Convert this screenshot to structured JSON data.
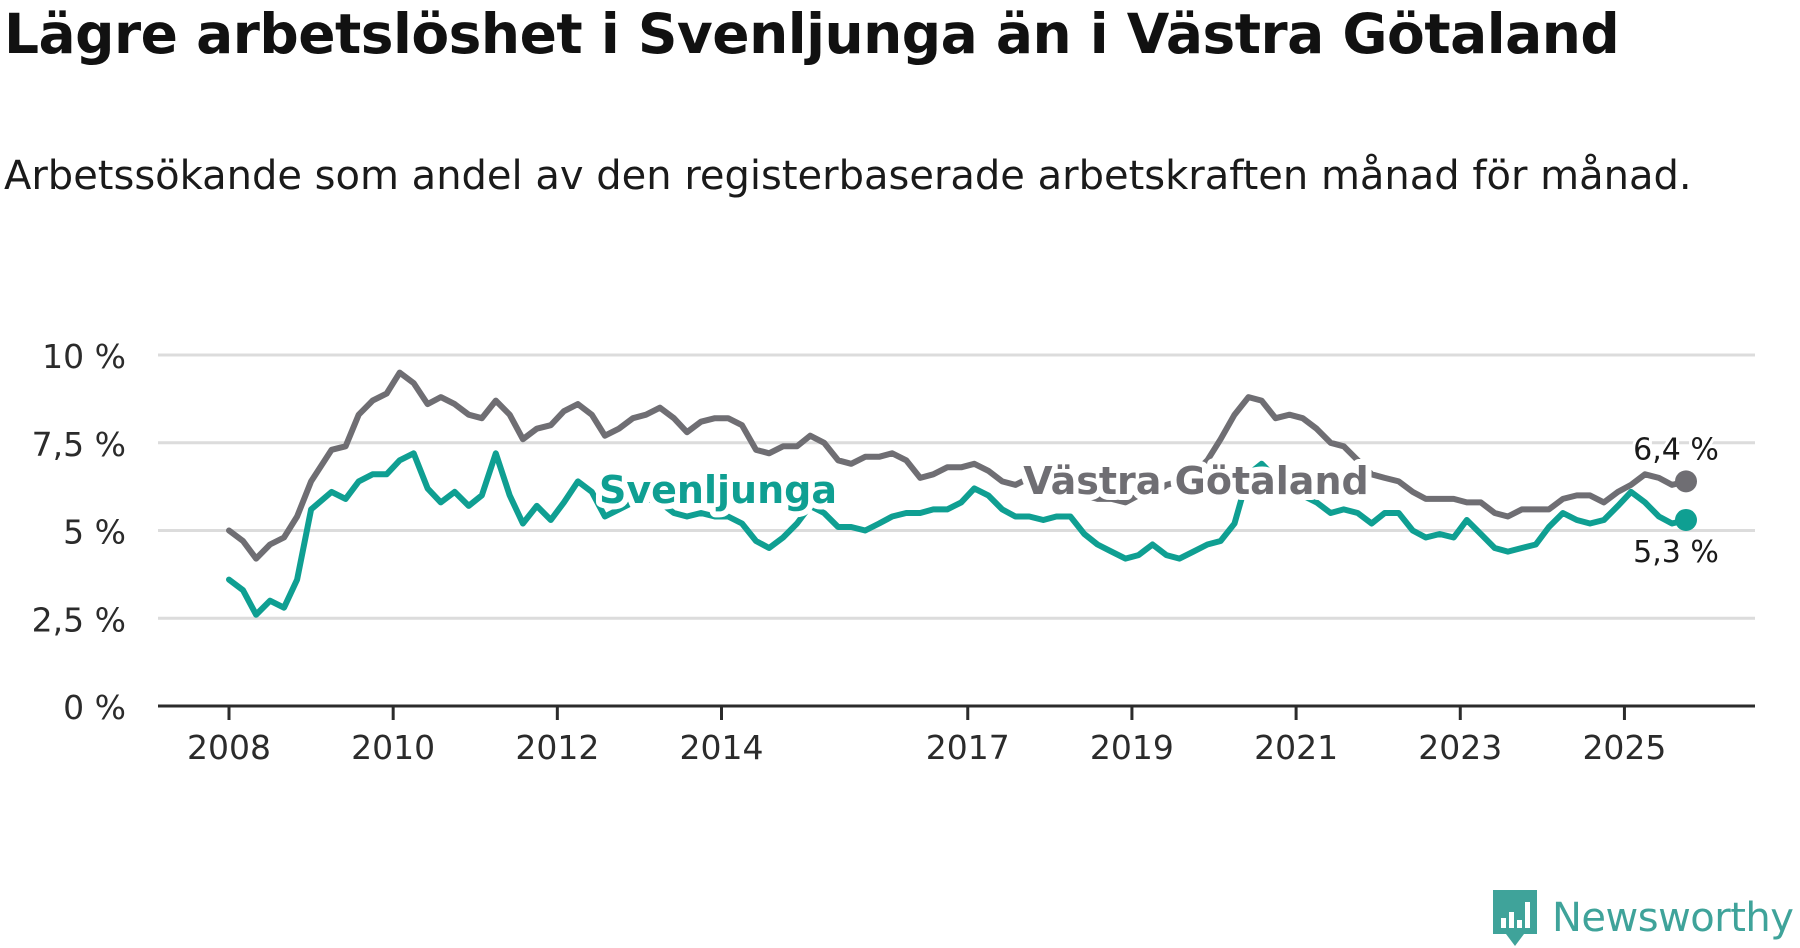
{
  "title": "Lägre arbetslöshet i Svenljunga än i Västra Götaland",
  "subtitle": "Arbetssökande som andel av den registerbaserade arbetskraften månad för månad.",
  "brand": {
    "name": "Newsworthy",
    "icon": "newsworthy-logo-icon",
    "color": "#3fa39a"
  },
  "chart_data": {
    "type": "line",
    "title": "Lägre arbetslöshet i Svenljunga än i Västra Götaland",
    "xlabel": "",
    "ylabel": "",
    "ylim": [
      0,
      10
    ],
    "xlim": [
      2008,
      2025.75
    ],
    "grid": true,
    "y_ticks": [
      0,
      2.5,
      5,
      7.5,
      10
    ],
    "y_tick_labels": [
      "0 %",
      "2,5 %",
      "5 %",
      "7,5 %",
      "10 %"
    ],
    "x_ticks": [
      2008,
      2010,
      2012,
      2014,
      2017,
      2019,
      2021,
      2023,
      2025
    ],
    "x_tick_labels": [
      "2008",
      "2010",
      "2012",
      "2014",
      "2017",
      "2019",
      "2021",
      "2023",
      "2025"
    ],
    "series": [
      {
        "name": "Västra Götaland",
        "color": "#6f6e73",
        "label_position": "middle-right",
        "end_label": "6,4 %",
        "points": [
          [
            2008.0,
            5.0
          ],
          [
            2008.17,
            4.7
          ],
          [
            2008.33,
            4.2
          ],
          [
            2008.5,
            4.6
          ],
          [
            2008.67,
            4.8
          ],
          [
            2008.83,
            5.4
          ],
          [
            2009.0,
            6.4
          ],
          [
            2009.25,
            7.3
          ],
          [
            2009.42,
            7.4
          ],
          [
            2009.58,
            8.3
          ],
          [
            2009.75,
            8.7
          ],
          [
            2009.92,
            8.9
          ],
          [
            2010.08,
            9.5
          ],
          [
            2010.25,
            9.2
          ],
          [
            2010.42,
            8.6
          ],
          [
            2010.58,
            8.8
          ],
          [
            2010.75,
            8.6
          ],
          [
            2010.92,
            8.3
          ],
          [
            2011.08,
            8.2
          ],
          [
            2011.25,
            8.7
          ],
          [
            2011.42,
            8.3
          ],
          [
            2011.58,
            7.6
          ],
          [
            2011.75,
            7.9
          ],
          [
            2011.92,
            8.0
          ],
          [
            2012.08,
            8.4
          ],
          [
            2012.25,
            8.6
          ],
          [
            2012.42,
            8.3
          ],
          [
            2012.58,
            7.7
          ],
          [
            2012.75,
            7.9
          ],
          [
            2012.92,
            8.2
          ],
          [
            2013.08,
            8.3
          ],
          [
            2013.25,
            8.5
          ],
          [
            2013.42,
            8.2
          ],
          [
            2013.58,
            7.8
          ],
          [
            2013.75,
            8.1
          ],
          [
            2013.92,
            8.2
          ],
          [
            2014.08,
            8.2
          ],
          [
            2014.25,
            8.0
          ],
          [
            2014.42,
            7.3
          ],
          [
            2014.58,
            7.2
          ],
          [
            2014.75,
            7.4
          ],
          [
            2014.92,
            7.4
          ],
          [
            2015.08,
            7.7
          ],
          [
            2015.25,
            7.5
          ],
          [
            2015.42,
            7.0
          ],
          [
            2015.58,
            6.9
          ],
          [
            2015.75,
            7.1
          ],
          [
            2015.92,
            7.1
          ],
          [
            2016.08,
            7.2
          ],
          [
            2016.25,
            7.0
          ],
          [
            2016.42,
            6.5
          ],
          [
            2016.58,
            6.6
          ],
          [
            2016.75,
            6.8
          ],
          [
            2016.92,
            6.8
          ],
          [
            2017.08,
            6.9
          ],
          [
            2017.25,
            6.7
          ],
          [
            2017.42,
            6.4
          ],
          [
            2017.58,
            6.3
          ],
          [
            2017.75,
            6.5
          ],
          [
            2017.92,
            6.3
          ],
          [
            2018.08,
            6.3
          ],
          [
            2018.25,
            6.2
          ],
          [
            2018.42,
            6.0
          ],
          [
            2018.58,
            5.9
          ],
          [
            2018.75,
            5.9
          ],
          [
            2018.92,
            5.8
          ],
          [
            2019.08,
            6.0
          ],
          [
            2019.25,
            6.0
          ],
          [
            2019.42,
            6.3
          ],
          [
            2019.58,
            6.4
          ],
          [
            2019.75,
            6.6
          ],
          [
            2019.92,
            7.0
          ],
          [
            2020.08,
            7.6
          ],
          [
            2020.25,
            8.3
          ],
          [
            2020.42,
            8.8
          ],
          [
            2020.58,
            8.7
          ],
          [
            2020.75,
            8.2
          ],
          [
            2020.92,
            8.3
          ],
          [
            2021.08,
            8.2
          ],
          [
            2021.25,
            7.9
          ],
          [
            2021.42,
            7.5
          ],
          [
            2021.58,
            7.4
          ],
          [
            2021.75,
            7.0
          ],
          [
            2021.92,
            6.6
          ],
          [
            2022.08,
            6.5
          ],
          [
            2022.25,
            6.4
          ],
          [
            2022.42,
            6.1
          ],
          [
            2022.58,
            5.9
          ],
          [
            2022.75,
            5.9
          ],
          [
            2022.92,
            5.9
          ],
          [
            2023.08,
            5.8
          ],
          [
            2023.25,
            5.8
          ],
          [
            2023.42,
            5.5
          ],
          [
            2023.58,
            5.4
          ],
          [
            2023.75,
            5.6
          ],
          [
            2023.92,
            5.6
          ],
          [
            2024.08,
            5.6
          ],
          [
            2024.25,
            5.9
          ],
          [
            2024.42,
            6.0
          ],
          [
            2024.58,
            6.0
          ],
          [
            2024.75,
            5.8
          ],
          [
            2024.92,
            6.1
          ],
          [
            2025.08,
            6.3
          ],
          [
            2025.25,
            6.6
          ],
          [
            2025.42,
            6.5
          ],
          [
            2025.58,
            6.3
          ],
          [
            2025.75,
            6.4
          ]
        ]
      },
      {
        "name": "Svenljunga",
        "color": "#0f9f92",
        "label_position": "middle-left",
        "end_label": "5,3 %",
        "points": [
          [
            2008.0,
            3.6
          ],
          [
            2008.17,
            3.3
          ],
          [
            2008.33,
            2.6
          ],
          [
            2008.5,
            3.0
          ],
          [
            2008.67,
            2.8
          ],
          [
            2008.83,
            3.6
          ],
          [
            2009.0,
            5.6
          ],
          [
            2009.25,
            6.1
          ],
          [
            2009.42,
            5.9
          ],
          [
            2009.58,
            6.4
          ],
          [
            2009.75,
            6.6
          ],
          [
            2009.92,
            6.6
          ],
          [
            2010.08,
            7.0
          ],
          [
            2010.25,
            7.2
          ],
          [
            2010.42,
            6.2
          ],
          [
            2010.58,
            5.8
          ],
          [
            2010.75,
            6.1
          ],
          [
            2010.92,
            5.7
          ],
          [
            2011.08,
            6.0
          ],
          [
            2011.25,
            7.2
          ],
          [
            2011.42,
            6.0
          ],
          [
            2011.58,
            5.2
          ],
          [
            2011.75,
            5.7
          ],
          [
            2011.92,
            5.3
          ],
          [
            2012.08,
            5.8
          ],
          [
            2012.25,
            6.4
          ],
          [
            2012.42,
            6.1
          ],
          [
            2012.58,
            5.4
          ],
          [
            2012.75,
            5.6
          ],
          [
            2012.92,
            5.8
          ],
          [
            2013.08,
            5.9
          ],
          [
            2013.25,
            5.8
          ],
          [
            2013.42,
            5.5
          ],
          [
            2013.58,
            5.4
          ],
          [
            2013.75,
            5.5
          ],
          [
            2013.92,
            5.4
          ],
          [
            2014.08,
            5.4
          ],
          [
            2014.25,
            5.2
          ],
          [
            2014.42,
            4.7
          ],
          [
            2014.58,
            4.5
          ],
          [
            2014.75,
            4.8
          ],
          [
            2014.92,
            5.2
          ],
          [
            2015.08,
            5.7
          ],
          [
            2015.25,
            5.5
          ],
          [
            2015.42,
            5.1
          ],
          [
            2015.58,
            5.1
          ],
          [
            2015.75,
            5.0
          ],
          [
            2015.92,
            5.2
          ],
          [
            2016.08,
            5.4
          ],
          [
            2016.25,
            5.5
          ],
          [
            2016.42,
            5.5
          ],
          [
            2016.58,
            5.6
          ],
          [
            2016.75,
            5.6
          ],
          [
            2016.92,
            5.8
          ],
          [
            2017.08,
            6.2
          ],
          [
            2017.25,
            6.0
          ],
          [
            2017.42,
            5.6
          ],
          [
            2017.58,
            5.4
          ],
          [
            2017.75,
            5.4
          ],
          [
            2017.92,
            5.3
          ],
          [
            2018.08,
            5.4
          ],
          [
            2018.25,
            5.4
          ],
          [
            2018.42,
            4.9
          ],
          [
            2018.58,
            4.6
          ],
          [
            2018.75,
            4.4
          ],
          [
            2018.92,
            4.2
          ],
          [
            2019.08,
            4.3
          ],
          [
            2019.25,
            4.6
          ],
          [
            2019.42,
            4.3
          ],
          [
            2019.58,
            4.2
          ],
          [
            2019.75,
            4.4
          ],
          [
            2019.92,
            4.6
          ],
          [
            2020.08,
            4.7
          ],
          [
            2020.25,
            5.2
          ],
          [
            2020.42,
            6.6
          ],
          [
            2020.58,
            6.9
          ],
          [
            2020.75,
            6.5
          ],
          [
            2020.92,
            6.1
          ],
          [
            2021.08,
            6.0
          ],
          [
            2021.25,
            5.8
          ],
          [
            2021.42,
            5.5
          ],
          [
            2021.58,
            5.6
          ],
          [
            2021.75,
            5.5
          ],
          [
            2021.92,
            5.2
          ],
          [
            2022.08,
            5.5
          ],
          [
            2022.25,
            5.5
          ],
          [
            2022.42,
            5.0
          ],
          [
            2022.58,
            4.8
          ],
          [
            2022.75,
            4.9
          ],
          [
            2022.92,
            4.8
          ],
          [
            2023.08,
            5.3
          ],
          [
            2023.25,
            4.9
          ],
          [
            2023.42,
            4.5
          ],
          [
            2023.58,
            4.4
          ],
          [
            2023.75,
            4.5
          ],
          [
            2023.92,
            4.6
          ],
          [
            2024.08,
            5.1
          ],
          [
            2024.25,
            5.5
          ],
          [
            2024.42,
            5.3
          ],
          [
            2024.58,
            5.2
          ],
          [
            2024.75,
            5.3
          ],
          [
            2024.92,
            5.7
          ],
          [
            2025.08,
            6.1
          ],
          [
            2025.25,
            5.8
          ],
          [
            2025.42,
            5.4
          ],
          [
            2025.58,
            5.2
          ],
          [
            2025.75,
            5.3
          ]
        ]
      }
    ]
  }
}
